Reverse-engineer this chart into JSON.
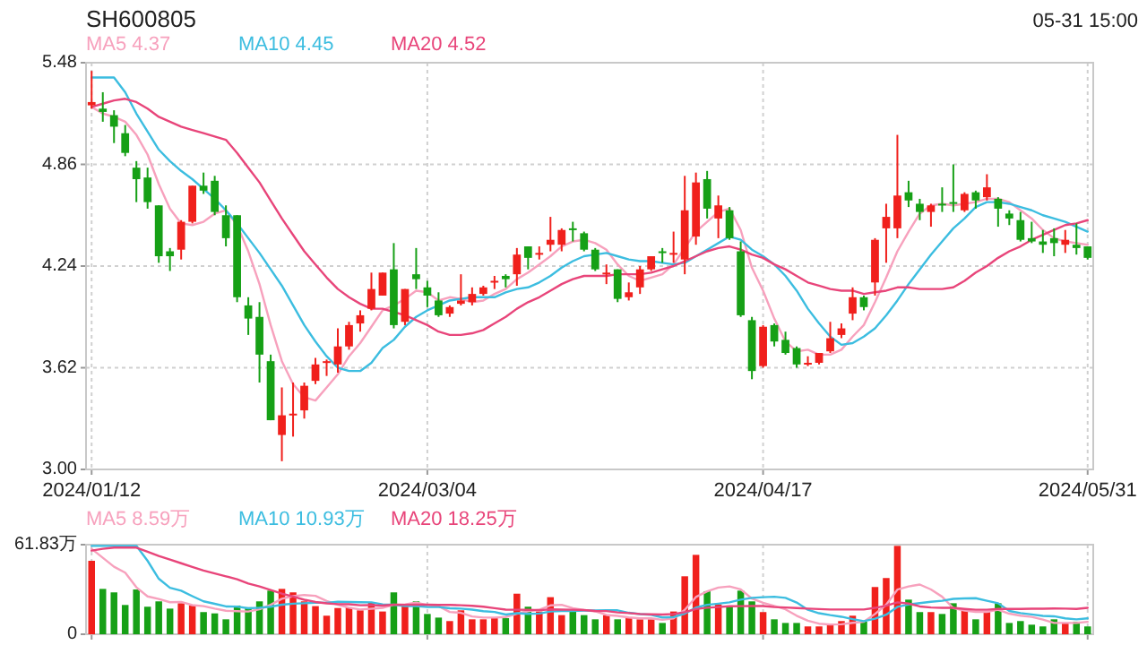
{
  "chart_data": [
    {
      "type": "candlestick",
      "title": "SH600805",
      "annotations": [
        "05-31 15:00"
      ],
      "categories": [
        "2024/01/12",
        null,
        null,
        null,
        null,
        null,
        null,
        null,
        null,
        null,
        null,
        null,
        null,
        null,
        null,
        null,
        null,
        null,
        null,
        null,
        null,
        null,
        null,
        null,
        null,
        null,
        null,
        null,
        null,
        null,
        "2024/03/04",
        null,
        null,
        null,
        null,
        null,
        null,
        null,
        null,
        null,
        null,
        null,
        null,
        null,
        null,
        null,
        null,
        null,
        null,
        null,
        null,
        null,
        null,
        null,
        null,
        null,
        null,
        null,
        null,
        null,
        "2024/04/17",
        null,
        null,
        null,
        null,
        null,
        null,
        null,
        null,
        null,
        null,
        null,
        null,
        null,
        null,
        null,
        null,
        null,
        null,
        null,
        null,
        null,
        null,
        null,
        null,
        null,
        null,
        null,
        null,
        "2024/05/31"
      ],
      "ohlc": [
        [
          5.22,
          5.43,
          5.2,
          5.24
        ],
        [
          5.2,
          5.3,
          5.12,
          5.18
        ],
        [
          5.16,
          5.19,
          4.99,
          5.09
        ],
        [
          5.05,
          5.1,
          4.91,
          4.93
        ],
        [
          4.84,
          4.88,
          4.63,
          4.77
        ],
        [
          4.78,
          4.84,
          4.59,
          4.63
        ],
        [
          4.61,
          4.61,
          4.26,
          4.3
        ],
        [
          4.33,
          4.35,
          4.21,
          4.3
        ],
        [
          4.34,
          4.52,
          4.28,
          4.51
        ],
        [
          4.51,
          4.73,
          4.5,
          4.73
        ],
        [
          4.73,
          4.81,
          4.68,
          4.7
        ],
        [
          4.76,
          4.79,
          4.55,
          4.57
        ],
        [
          4.55,
          4.61,
          4.36,
          4.41
        ],
        [
          4.55,
          4.55,
          4.02,
          4.05
        ],
        [
          4.0,
          4.05,
          3.82,
          3.92
        ],
        [
          3.93,
          4.02,
          3.53,
          3.7
        ],
        [
          3.66,
          3.7,
          3.3,
          3.3
        ],
        [
          3.21,
          3.5,
          3.05,
          3.33
        ],
        [
          3.33,
          3.53,
          3.2,
          3.34
        ],
        [
          3.36,
          3.53,
          3.31,
          3.51
        ],
        [
          3.54,
          3.68,
          3.52,
          3.64
        ],
        [
          3.65,
          3.67,
          3.57,
          3.66
        ],
        [
          3.64,
          3.86,
          3.59,
          3.75
        ],
        [
          3.75,
          3.9,
          3.73,
          3.88
        ],
        [
          3.89,
          3.97,
          3.84,
          3.94
        ],
        [
          3.98,
          4.2,
          3.97,
          4.1
        ],
        [
          4.06,
          4.2,
          4.06,
          4.2
        ],
        [
          4.22,
          4.38,
          3.86,
          3.88
        ],
        [
          3.9,
          4.1,
          3.88,
          4.1
        ],
        [
          4.19,
          4.35,
          4.1,
          4.16
        ],
        [
          4.11,
          4.15,
          3.99,
          4.06
        ],
        [
          4.03,
          4.08,
          3.93,
          3.94
        ],
        [
          3.95,
          4.0,
          3.93,
          3.99
        ],
        [
          4.01,
          4.19,
          4.0,
          4.03
        ],
        [
          4.02,
          4.11,
          4.0,
          4.07
        ],
        [
          4.07,
          4.12,
          4.06,
          4.11
        ],
        [
          4.14,
          4.18,
          4.1,
          4.15
        ],
        [
          4.18,
          4.19,
          4.11,
          4.16
        ],
        [
          4.19,
          4.35,
          4.12,
          4.31
        ],
        [
          4.36,
          4.36,
          4.22,
          4.29
        ],
        [
          4.31,
          4.36,
          4.28,
          4.32
        ],
        [
          4.37,
          4.54,
          4.33,
          4.4
        ],
        [
          4.37,
          4.47,
          4.33,
          4.46
        ],
        [
          4.47,
          4.51,
          4.39,
          4.46
        ],
        [
          4.44,
          4.45,
          4.33,
          4.34
        ],
        [
          4.34,
          4.35,
          4.21,
          4.22
        ],
        [
          4.19,
          4.25,
          4.13,
          4.2
        ],
        [
          4.22,
          4.22,
          4.02,
          4.04
        ],
        [
          4.05,
          4.14,
          4.03,
          4.08
        ],
        [
          4.11,
          4.24,
          4.07,
          4.22
        ],
        [
          4.22,
          4.3,
          4.21,
          4.3
        ],
        [
          4.33,
          4.35,
          4.26,
          4.32
        ],
        [
          4.31,
          4.45,
          4.26,
          4.32
        ],
        [
          4.28,
          4.79,
          4.19,
          4.58
        ],
        [
          4.42,
          4.81,
          4.37,
          4.75
        ],
        [
          4.77,
          4.82,
          4.53,
          4.59
        ],
        [
          4.53,
          4.67,
          4.41,
          4.61
        ],
        [
          4.58,
          4.6,
          4.4,
          4.41
        ],
        [
          4.33,
          4.39,
          3.93,
          3.94
        ],
        [
          3.91,
          3.93,
          3.55,
          3.6
        ],
        [
          3.63,
          3.88,
          3.62,
          3.87
        ],
        [
          3.88,
          3.89,
          3.75,
          3.78
        ],
        [
          3.79,
          3.84,
          3.7,
          3.71
        ],
        [
          3.74,
          3.75,
          3.62,
          3.64
        ],
        [
          3.64,
          3.69,
          3.63,
          3.65
        ],
        [
          3.65,
          3.71,
          3.64,
          3.71
        ],
        [
          3.72,
          3.9,
          3.71,
          3.8
        ],
        [
          3.82,
          3.89,
          3.8,
          3.86
        ],
        [
          3.95,
          4.11,
          3.91,
          4.05
        ],
        [
          4.05,
          4.06,
          3.97,
          3.99
        ],
        [
          4.14,
          4.41,
          4.06,
          4.4
        ],
        [
          4.47,
          4.62,
          4.26,
          4.54
        ],
        [
          4.47,
          5.04,
          4.41,
          4.67
        ],
        [
          4.69,
          4.76,
          4.6,
          4.64
        ],
        [
          4.62,
          4.65,
          4.52,
          4.57
        ],
        [
          4.57,
          4.62,
          4.48,
          4.61
        ],
        [
          4.62,
          4.72,
          4.57,
          4.61
        ],
        [
          4.63,
          4.86,
          4.57,
          4.62
        ],
        [
          4.58,
          4.69,
          4.57,
          4.68
        ],
        [
          4.69,
          4.7,
          4.59,
          4.64
        ],
        [
          4.66,
          4.8,
          4.64,
          4.72
        ],
        [
          4.65,
          4.66,
          4.48,
          4.59
        ],
        [
          4.56,
          4.58,
          4.49,
          4.53
        ],
        [
          4.52,
          4.57,
          4.39,
          4.4
        ],
        [
          4.41,
          4.51,
          4.38,
          4.39
        ],
        [
          4.39,
          4.46,
          4.32,
          4.37
        ],
        [
          4.41,
          4.47,
          4.3,
          4.38
        ],
        [
          4.37,
          4.46,
          4.32,
          4.4
        ],
        [
          4.37,
          4.5,
          4.31,
          4.35
        ],
        [
          4.36,
          4.36,
          4.28,
          4.29
        ]
      ],
      "colors": [
        "#f0201c",
        "#16a016",
        "#16a016",
        "#16a016",
        "#16a016",
        "#16a016",
        "#16a016",
        "#16a016",
        "#f0201c",
        "#f0201c",
        "#16a016",
        "#16a016",
        "#16a016",
        "#16a016",
        "#16a016",
        "#16a016",
        "#16a016",
        "#f0201c",
        "#f0201c",
        "#f0201c",
        "#f0201c",
        "#f0201c",
        "#f0201c",
        "#f0201c",
        "#f0201c",
        "#f0201c",
        "#f0201c",
        "#16a016",
        "#f0201c",
        "#16a016",
        "#16a016",
        "#16a016",
        "#f0201c",
        "#f0201c",
        "#f0201c",
        "#f0201c",
        "#f0201c",
        "#16a016",
        "#f0201c",
        "#16a016",
        "#f0201c",
        "#f0201c",
        "#f0201c",
        "#16a016",
        "#16a016",
        "#16a016",
        "#f0201c",
        "#16a016",
        "#f0201c",
        "#f0201c",
        "#f0201c",
        "#16a016",
        "#f0201c",
        "#f0201c",
        "#f0201c",
        "#16a016",
        "#f0201c",
        "#16a016",
        "#16a016",
        "#16a016",
        "#f0201c",
        "#16a016",
        "#16a016",
        "#16a016",
        "#f0201c",
        "#f0201c",
        "#f0201c",
        "#f0201c",
        "#f0201c",
        "#16a016",
        "#f0201c",
        "#f0201c",
        "#f0201c",
        "#16a016",
        "#16a016",
        "#f0201c",
        "#16a016",
        "#16a016",
        "#f0201c",
        "#16a016",
        "#f0201c",
        "#16a016",
        "#16a016",
        "#16a016",
        "#16a016",
        "#16a016",
        "#16a016",
        "#f0201c",
        "#16a016",
        "#16a016"
      ],
      "series": [
        {
          "type": "line",
          "name": "MA5 4.37",
          "color": "#f7a1bd",
          "values": [
            5.21,
            5.17,
            5.15,
            5.12,
            5.04,
            4.92,
            4.74,
            4.59,
            4.5,
            4.49,
            4.51,
            4.56,
            4.58,
            4.49,
            4.33,
            4.13,
            3.88,
            3.66,
            3.52,
            3.44,
            3.42,
            3.5,
            3.58,
            3.69,
            3.77,
            3.87,
            3.97,
            4.0,
            4.04,
            4.09,
            4.08,
            4.03,
            4.05,
            4.04,
            4.02,
            4.03,
            4.07,
            4.1,
            4.16,
            4.2,
            4.25,
            4.3,
            4.36,
            4.39,
            4.4,
            4.38,
            4.34,
            4.25,
            4.18,
            4.15,
            4.17,
            4.19,
            4.25,
            4.35,
            4.45,
            4.51,
            4.57,
            4.59,
            4.46,
            4.23,
            4.09,
            3.92,
            3.78,
            3.72,
            3.73,
            3.7,
            3.7,
            3.73,
            3.81,
            3.88,
            4.02,
            4.17,
            4.33,
            4.45,
            4.56,
            4.61,
            4.62,
            4.61,
            4.62,
            4.63,
            4.65,
            4.65,
            4.63,
            4.58,
            4.53,
            4.46,
            4.41,
            4.39,
            4.38,
            4.37
          ]
        },
        {
          "type": "line",
          "name": "MA10 4.45",
          "color": "#3cbde0",
          "values": [
            5.39,
            5.39,
            5.39,
            5.3,
            5.17,
            5.06,
            4.95,
            4.88,
            4.82,
            4.77,
            4.71,
            4.65,
            4.58,
            4.5,
            4.41,
            4.32,
            4.22,
            4.12,
            4.0,
            3.88,
            3.78,
            3.69,
            3.62,
            3.6,
            3.6,
            3.65,
            3.74,
            3.79,
            3.87,
            3.93,
            3.97,
            4.0,
            4.03,
            4.04,
            4.05,
            4.05,
            4.05,
            4.08,
            4.1,
            4.11,
            4.14,
            4.18,
            4.23,
            4.27,
            4.3,
            4.31,
            4.32,
            4.3,
            4.28,
            4.27,
            4.27,
            4.26,
            4.25,
            4.26,
            4.3,
            4.34,
            4.38,
            4.42,
            4.4,
            4.34,
            4.3,
            4.25,
            4.18,
            4.09,
            3.98,
            3.89,
            3.81,
            3.76,
            3.77,
            3.81,
            3.86,
            3.94,
            4.03,
            4.13,
            4.22,
            4.31,
            4.39,
            4.47,
            4.53,
            4.6,
            4.63,
            4.63,
            4.62,
            4.6,
            4.58,
            4.55,
            4.53,
            4.51,
            4.48,
            4.45
          ]
        },
        {
          "type": "line",
          "name": "MA20 4.52",
          "color": "#e8457a",
          "values": [
            5.21,
            5.23,
            5.25,
            5.26,
            5.24,
            5.2,
            5.15,
            5.12,
            5.09,
            5.07,
            5.05,
            5.03,
            5.01,
            4.93,
            4.84,
            4.75,
            4.64,
            4.53,
            4.43,
            4.33,
            4.25,
            4.17,
            4.1,
            4.05,
            4.01,
            3.98,
            3.98,
            3.96,
            3.94,
            3.91,
            3.88,
            3.84,
            3.82,
            3.82,
            3.83,
            3.85,
            3.89,
            3.93,
            3.98,
            4.02,
            4.05,
            4.09,
            4.13,
            4.16,
            4.18,
            4.18,
            4.18,
            4.19,
            4.19,
            4.19,
            4.2,
            4.22,
            4.24,
            4.27,
            4.3,
            4.33,
            4.35,
            4.36,
            4.34,
            4.31,
            4.29,
            4.25,
            4.22,
            4.18,
            4.14,
            4.12,
            4.1,
            4.09,
            4.09,
            4.07,
            4.08,
            4.09,
            4.11,
            4.11,
            4.1,
            4.1,
            4.1,
            4.11,
            4.15,
            4.2,
            4.24,
            4.29,
            4.33,
            4.36,
            4.4,
            4.43,
            4.46,
            4.49,
            4.5,
            4.52
          ]
        }
      ],
      "ylim": [
        3.0,
        5.48
      ],
      "yticks": [
        5.48,
        4.86,
        4.24,
        3.62,
        {
          "value": 3.0,
          "label": "3.00"
        }
      ],
      "grid": true,
      "legend": "top left"
    },
    {
      "type": "bar",
      "tick_labels": "y",
      "categories": [
        "2024/01/12",
        null,
        null,
        null,
        null,
        null,
        null,
        null,
        null,
        null,
        null,
        null,
        null,
        null,
        null,
        null,
        null,
        null,
        null,
        null,
        null,
        null,
        null,
        null,
        null,
        null,
        null,
        null,
        null,
        null,
        "2024/03/04",
        null,
        null,
        null,
        null,
        null,
        null,
        null,
        null,
        null,
        null,
        null,
        null,
        null,
        null,
        null,
        null,
        null,
        null,
        null,
        null,
        null,
        null,
        null,
        null,
        null,
        null,
        null,
        null,
        null,
        "2024/04/17",
        null,
        null,
        null,
        null,
        null,
        null,
        null,
        null,
        null,
        null,
        null,
        null,
        null,
        null,
        null,
        null,
        null,
        null,
        null,
        null,
        null,
        null,
        null,
        null,
        null,
        null,
        null,
        null,
        "2024/05/31"
      ],
      "values": [
        50.7,
        31.3,
        28.9,
        20.2,
        30.9,
        19.0,
        22.7,
        17.7,
        21.4,
        19.8,
        15.3,
        14.4,
        10.3,
        19.8,
        18.6,
        22.7,
        30.1,
        31.3,
        28.9,
        22.7,
        19.4,
        12.8,
        18.1,
        18.6,
        16.5,
        21.9,
        15.7,
        28.9,
        19.8,
        22.7,
        14.0,
        11.5,
        9.1,
        16.5,
        10.3,
        10.3,
        11.1,
        11.1,
        28.0,
        19.0,
        15.7,
        25.6,
        13.2,
        16.5,
        13.2,
        10.3,
        13.2,
        10.3,
        11.1,
        10.3,
        10.3,
        7.8,
        15.7,
        40.0,
        54.8,
        29.7,
        20.6,
        19.8,
        30.1,
        22.7,
        15.3,
        10.3,
        7.8,
        7.8,
        5.4,
        5.4,
        7.0,
        9.1,
        12.8,
        8.7,
        32.6,
        38.8,
        61.0,
        23.9,
        15.3,
        15.3,
        14.0,
        21.4,
        16.1,
        10.3,
        15.3,
        21.4,
        7.8,
        9.1,
        6.6,
        5.4,
        10.3,
        7.8,
        8.7,
        5.4
      ],
      "colors": [
        "#f0201c",
        "#16a016",
        "#16a016",
        "#16a016",
        "#16a016",
        "#16a016",
        "#16a016",
        "#16a016",
        "#f0201c",
        "#f0201c",
        "#16a016",
        "#16a016",
        "#16a016",
        "#16a016",
        "#16a016",
        "#16a016",
        "#16a016",
        "#f0201c",
        "#f0201c",
        "#f0201c",
        "#f0201c",
        "#f0201c",
        "#f0201c",
        "#f0201c",
        "#f0201c",
        "#f0201c",
        "#f0201c",
        "#16a016",
        "#f0201c",
        "#16a016",
        "#16a016",
        "#16a016",
        "#f0201c",
        "#f0201c",
        "#f0201c",
        "#f0201c",
        "#f0201c",
        "#16a016",
        "#f0201c",
        "#16a016",
        "#f0201c",
        "#f0201c",
        "#f0201c",
        "#16a016",
        "#16a016",
        "#16a016",
        "#f0201c",
        "#16a016",
        "#f0201c",
        "#f0201c",
        "#f0201c",
        "#16a016",
        "#f0201c",
        "#f0201c",
        "#f0201c",
        "#16a016",
        "#f0201c",
        "#16a016",
        "#16a016",
        "#16a016",
        "#f0201c",
        "#16a016",
        "#16a016",
        "#16a016",
        "#f0201c",
        "#f0201c",
        "#f0201c",
        "#f0201c",
        "#f0201c",
        "#16a016",
        "#f0201c",
        "#f0201c",
        "#f0201c",
        "#16a016",
        "#16a016",
        "#f0201c",
        "#16a016",
        "#16a016",
        "#f0201c",
        "#16a016",
        "#f0201c",
        "#16a016",
        "#16a016",
        "#16a016",
        "#16a016",
        "#16a016",
        "#16a016",
        "#f0201c",
        "#16a016",
        "#16a016"
      ],
      "series": [
        {
          "type": "line",
          "name": "MA5 8.59万",
          "color": "#f7a1bd",
          "values": [
            59.0,
            52.8,
            46.6,
            42.5,
            32.4,
            26.1,
            24.3,
            22.1,
            22.3,
            20.1,
            19.4,
            17.7,
            16.2,
            15.9,
            15.7,
            17.2,
            20.3,
            24.5,
            26.3,
            27.1,
            26.5,
            23.0,
            20.4,
            18.3,
            17.1,
            17.6,
            18.2,
            20.3,
            20.6,
            21.8,
            20.2,
            19.4,
            15.4,
            14.8,
            12.3,
            11.5,
            11.5,
            11.9,
            14.2,
            15.9,
            17.0,
            19.9,
            20.3,
            18.0,
            16.8,
            15.8,
            13.3,
            12.7,
            11.6,
            11.0,
            11.0,
            10.0,
            11.0,
            16.8,
            25.7,
            29.6,
            32.2,
            33.0,
            31.0,
            24.6,
            21.7,
            19.6,
            17.2,
            12.8,
            9.3,
            7.3,
            6.7,
            6.9,
            7.9,
            8.6,
            14.0,
            20.4,
            30.8,
            33.0,
            34.3,
            30.9,
            25.9,
            18.0,
            16.4,
            15.4,
            15.4,
            16.9,
            14.2,
            12.8,
            12.0,
            10.1,
            7.8,
            7.8,
            7.8,
            8.59
          ]
        },
        {
          "type": "line",
          "name": "MA10 10.93万",
          "color": "#3cbde0",
          "values": [
            61.0,
            61.0,
            61.0,
            61.0,
            61.0,
            50.7,
            38.3,
            32.1,
            30.1,
            26.3,
            22.7,
            21.0,
            19.2,
            19.1,
            17.9,
            18.3,
            19.0,
            20.4,
            21.1,
            21.4,
            21.8,
            21.7,
            22.4,
            22.3,
            22.1,
            22.0,
            20.6,
            20.4,
            19.4,
            19.4,
            18.9,
            18.8,
            17.9,
            17.7,
            17.0,
            15.9,
            15.4,
            13.6,
            14.5,
            14.1,
            14.3,
            15.7,
            16.1,
            16.1,
            16.4,
            16.4,
            16.6,
            16.5,
            14.8,
            13.9,
            13.4,
            11.6,
            11.9,
            14.2,
            18.4,
            20.3,
            21.1,
            22.0,
            23.9,
            25.1,
            25.6,
            25.9,
            25.1,
            21.9,
            16.9,
            14.5,
            13.2,
            12.1,
            10.4,
            9.0,
            10.7,
            13.5,
            18.9,
            20.5,
            21.5,
            22.4,
            23.1,
            24.4,
            24.7,
            24.9,
            23.1,
            21.4,
            16.1,
            14.6,
            13.7,
            12.7,
            12.4,
            11.0,
            10.3,
            10.93
          ]
        },
        {
          "type": "line",
          "name": "MA20 18.25万",
          "color": "#e8457a",
          "values": [
            57.7,
            59.0,
            59.8,
            59.8,
            59.8,
            57.0,
            54.0,
            51.5,
            49.0,
            46.5,
            44.0,
            42.0,
            40.0,
            38.0,
            35.0,
            33.0,
            30.5,
            28.0,
            26.0,
            23.8,
            22.3,
            21.3,
            20.8,
            20.7,
            20.0,
            20.1,
            19.8,
            20.4,
            20.3,
            20.4,
            20.4,
            20.2,
            20.2,
            20.0,
            19.6,
            19.0,
            18.0,
            17.0,
            16.9,
            16.8,
            16.6,
            17.2,
            17.0,
            16.9,
            16.7,
            16.1,
            16.0,
            15.1,
            14.6,
            14.0,
            13.8,
            13.6,
            14.0,
            15.2,
            17.4,
            18.3,
            18.8,
            19.3,
            19.4,
            19.5,
            19.5,
            18.8,
            18.5,
            18.1,
            17.7,
            17.4,
            17.1,
            17.1,
            17.1,
            17.1,
            18.2,
            19.7,
            22.0,
            21.2,
            19.2,
            18.5,
            18.2,
            18.2,
            17.5,
            16.9,
            16.9,
            17.5,
            17.5,
            17.5,
            17.6,
            17.6,
            17.8,
            17.7,
            17.5,
            18.25
          ]
        }
      ],
      "ylim": [
        0,
        61.83
      ],
      "yticks": [
        {
          "value": 61.83,
          "label": "61.83万"
        },
        0
      ],
      "grid": true,
      "legend": "top left"
    }
  ]
}
